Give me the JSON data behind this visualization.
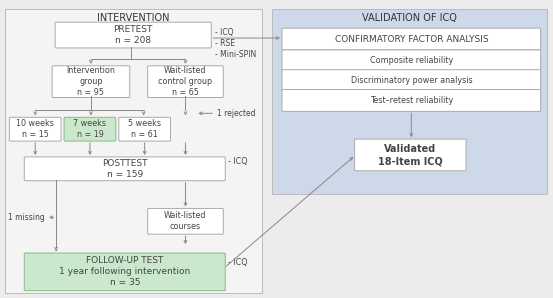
{
  "bg_color": "#ececec",
  "white": "#ffffff",
  "green_fill": "#cce8cc",
  "green_border": "#88bb88",
  "light_blue_bg": "#cdd9e8",
  "box_border": "#aaaaaa",
  "int_bg_color": "#f2f2f2",
  "intervention_title": "INTERVENTION",
  "validation_title": "VALIDATION OF ICQ",
  "pretest_label": "PRETEST\nn = 208",
  "pretest_items": "- ICQ\n- RSE\n- Mini-SPIN",
  "int_group_label": "Intervention\ngroup\nn = 95",
  "wait_group_label": "Wait-listed\ncontrol group\nn = 65",
  "weeks_10": "10 weeks\nn = 15",
  "weeks_7": "7 weeks\nn = 19",
  "weeks_5": "5 weeks\nn = 61",
  "rejected": "1 rejected",
  "posttest_label": "POSTTEST\nn = 159",
  "posttest_icq": "- ICQ",
  "missing": "1 missing",
  "waitlisted_courses": "Wait-listed\ncourses",
  "followup_label": "FOLLOW-UP TEST",
  "followup_sub": "1 year following intervention",
  "followup_n": "n = 35",
  "followup_icq": "- ICQ",
  "cfa_label": "CONFIRMATORY FACTOR ANALYSIS",
  "reliability_items": [
    "Composite reliability",
    "Discriminatory power analysis",
    "Test–retest reliability"
  ],
  "validated_label": "Validated\n18-Item ICQ",
  "text_color": "#444444",
  "arrow_color": "#888888"
}
